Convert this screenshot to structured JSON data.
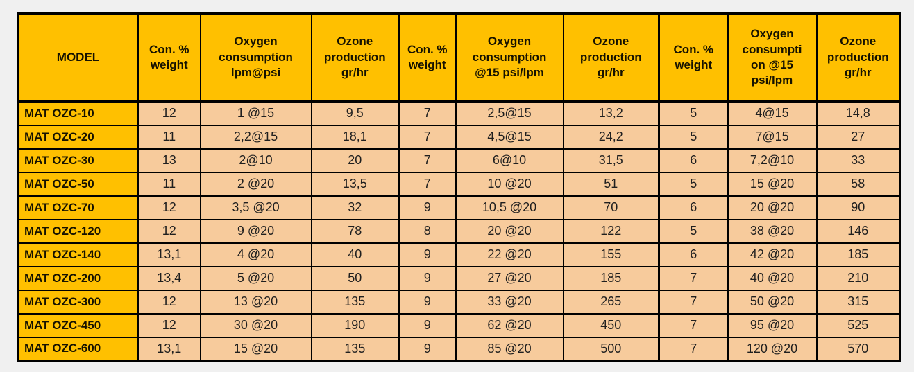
{
  "colors": {
    "header_bg": "#ffc000",
    "model_col_bg": "#ffc000",
    "data_cell_bg": "#f7cb9c",
    "border": "#000000",
    "page_bg": "#f0f0f0",
    "text": "#1a1a1a"
  },
  "table": {
    "columns": [
      {
        "label": "MODEL"
      },
      {
        "label": "Con. %\nweight"
      },
      {
        "label": "Oxygen\nconsumption\nlpm@psi"
      },
      {
        "label": "Ozone\nproduction\ngr/hr"
      },
      {
        "label": "Con. %\nweight"
      },
      {
        "label": "Oxygen\nconsumption\n@15 psi/lpm"
      },
      {
        "label": "Ozone\nproduction\ngr/hr"
      },
      {
        "label": "Con. %\nweight"
      },
      {
        "label": "Oxygen\nconsumpti\non @15\npsi/lpm"
      },
      {
        "label": "Ozone\nproduction\ngr/hr"
      }
    ],
    "rows": [
      {
        "model": "MAT OZC-10",
        "values": [
          "12",
          "1 @15",
          "9,5",
          "7",
          "2,5@15",
          "13,2",
          "5",
          "4@15",
          "14,8"
        ]
      },
      {
        "model": "MAT OZC-20",
        "values": [
          "11",
          "2,2@15",
          "18,1",
          "7",
          "4,5@15",
          "24,2",
          "5",
          "7@15",
          "27"
        ]
      },
      {
        "model": "MAT OZC-30",
        "values": [
          "13",
          "2@10",
          "20",
          "7",
          "6@10",
          "31,5",
          "6",
          "7,2@10",
          "33"
        ]
      },
      {
        "model": "MAT OZC-50",
        "values": [
          "11",
          "2 @20",
          "13,5",
          "7",
          "10 @20",
          "51",
          "5",
          "15 @20",
          "58"
        ]
      },
      {
        "model": "MAT OZC-70",
        "values": [
          "12",
          "3,5 @20",
          "32",
          "9",
          "10,5 @20",
          "70",
          "6",
          "20 @20",
          "90"
        ]
      },
      {
        "model": "MAT OZC-120",
        "values": [
          "12",
          "9 @20",
          "78",
          "8",
          "20 @20",
          "122",
          "5",
          "38 @20",
          "146"
        ]
      },
      {
        "model": "MAT OZC-140",
        "values": [
          "13,1",
          "4 @20",
          "40",
          "9",
          "22 @20",
          "155",
          "6",
          "42 @20",
          "185"
        ]
      },
      {
        "model": "MAT OZC-200",
        "values": [
          "13,4",
          "5 @20",
          "50",
          "9",
          "27 @20",
          "185",
          "7",
          "40 @20",
          "210"
        ]
      },
      {
        "model": "MAT OZC-300",
        "values": [
          "12",
          "13 @20",
          "135",
          "9",
          "33 @20",
          "265",
          "7",
          "50 @20",
          "315"
        ]
      },
      {
        "model": "MAT OZC-450",
        "values": [
          "12",
          "30 @20",
          "190",
          "9",
          "62 @20",
          "450",
          "7",
          "95 @20",
          "525"
        ]
      },
      {
        "model": "MAT OZC-600",
        "values": [
          "13,1",
          "15 @20",
          "135",
          "9",
          "85 @20",
          "500",
          "7",
          "120 @20",
          "570"
        ]
      }
    ]
  },
  "chart_data": {
    "type": "table",
    "title": "Ozone generator models specification table",
    "columns": [
      "MODEL",
      "Con. % weight",
      "Oxygen consumption lpm@psi",
      "Ozone production gr/hr",
      "Con. % weight",
      "Oxygen consumption @15 psi/lpm",
      "Ozone production gr/hr",
      "Con. % weight",
      "Oxygen consumption @15 psi/lpm",
      "Ozone production gr/hr"
    ],
    "rows": [
      [
        "MAT OZC-10",
        "12",
        "1 @15",
        "9,5",
        "7",
        "2,5@15",
        "13,2",
        "5",
        "4@15",
        "14,8"
      ],
      [
        "MAT OZC-20",
        "11",
        "2,2@15",
        "18,1",
        "7",
        "4,5@15",
        "24,2",
        "5",
        "7@15",
        "27"
      ],
      [
        "MAT OZC-30",
        "13",
        "2@10",
        "20",
        "7",
        "6@10",
        "31,5",
        "6",
        "7,2@10",
        "33"
      ],
      [
        "MAT OZC-50",
        "11",
        "2 @20",
        "13,5",
        "7",
        "10 @20",
        "51",
        "5",
        "15 @20",
        "58"
      ],
      [
        "MAT OZC-70",
        "12",
        "3,5 @20",
        "32",
        "9",
        "10,5 @20",
        "70",
        "6",
        "20 @20",
        "90"
      ],
      [
        "MAT OZC-120",
        "12",
        "9 @20",
        "78",
        "8",
        "20 @20",
        "122",
        "5",
        "38 @20",
        "146"
      ],
      [
        "MAT OZC-140",
        "13,1",
        "4 @20",
        "40",
        "9",
        "22 @20",
        "155",
        "6",
        "42 @20",
        "185"
      ],
      [
        "MAT OZC-200",
        "13,4",
        "5 @20",
        "50",
        "9",
        "27 @20",
        "185",
        "7",
        "40 @20",
        "210"
      ],
      [
        "MAT OZC-300",
        "12",
        "13 @20",
        "135",
        "9",
        "33 @20",
        "265",
        "7",
        "50 @20",
        "315"
      ],
      [
        "MAT OZC-450",
        "12",
        "30 @20",
        "190",
        "9",
        "62 @20",
        "450",
        "7",
        "95 @20",
        "525"
      ],
      [
        "MAT OZC-600",
        "13,1",
        "15 @20",
        "135",
        "9",
        "85 @20",
        "500",
        "7",
        "120 @20",
        "570"
      ]
    ]
  }
}
